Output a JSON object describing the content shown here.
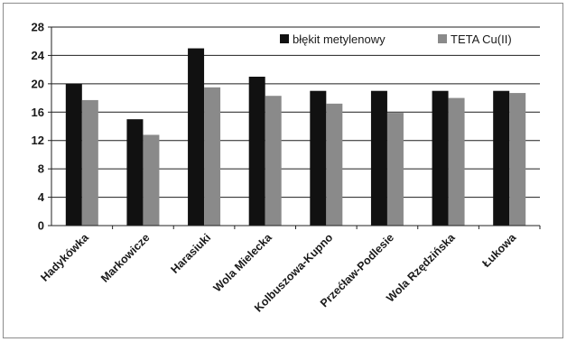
{
  "chart_data": {
    "type": "bar",
    "title": "",
    "xlabel": "",
    "ylabel": "",
    "ylim": [
      0,
      28
    ],
    "yticks": [
      0,
      4,
      8,
      12,
      16,
      20,
      24,
      28
    ],
    "grid": true,
    "legend_position": "top-right",
    "categories": [
      "Hadykówka",
      "Markowicze",
      "Harasiuki",
      "Wola Mielecka",
      "Kolbuszowa-Kupno",
      "Przećław-Podlesie",
      "Wola Rzędzińska",
      "Łukowa"
    ],
    "series": [
      {
        "name": "błękit metylenowy",
        "color": "#111111",
        "values": [
          20,
          15,
          25,
          21,
          19,
          19,
          19,
          19
        ]
      },
      {
        "name": "TETA Cu(II)",
        "color": "#8a8a8a",
        "values": [
          17.7,
          12.8,
          19.5,
          18.3,
          17.2,
          15.9,
          18.0,
          18.7
        ]
      }
    ]
  }
}
